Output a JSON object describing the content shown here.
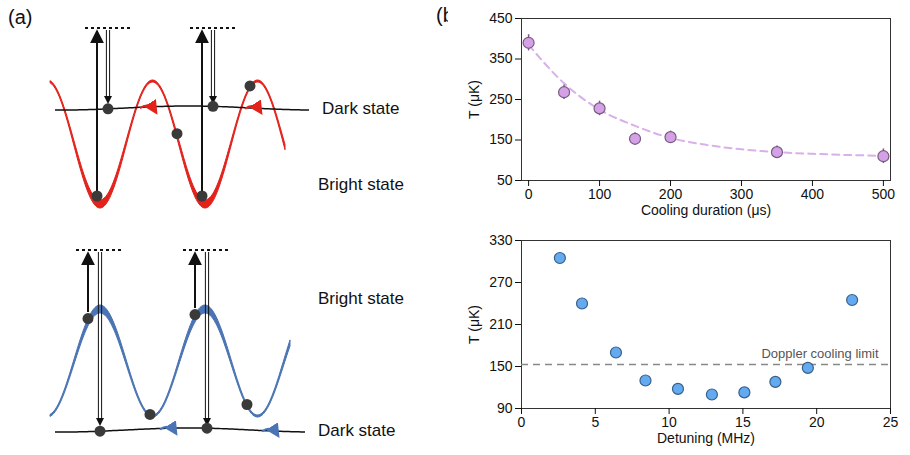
{
  "panel_labels": [
    "(a)",
    "(b)"
  ],
  "diagram": {
    "top": {
      "upper_state": "Dark state",
      "lower_state": "Bright state",
      "color": "#e3221c"
    },
    "bottom": {
      "upper_state": "Bright state",
      "lower_state": "Dark state",
      "color": "#4a74b4"
    }
  },
  "chart_data": [
    {
      "type": "scatter",
      "x_label": "Cooling duration (μs)",
      "y_label": "T (μK)",
      "x": [
        0,
        50,
        100,
        150,
        200,
        350,
        500
      ],
      "values": [
        390,
        268,
        228,
        153,
        157,
        120,
        110
      ],
      "errors": [
        20,
        18,
        18,
        15,
        15,
        15,
        18
      ],
      "color": "#d4a0e6",
      "marker": "circle",
      "xlim": [
        -10,
        510
      ],
      "xticks": [
        0,
        100,
        200,
        300,
        400,
        500
      ],
      "ylim": [
        50,
        450
      ],
      "yticks": [
        50,
        150,
        250,
        350,
        450
      ],
      "fit": {
        "x": [
          0,
          50,
          100,
          150,
          200,
          250,
          300,
          350,
          400,
          450,
          500
        ],
        "values": [
          385,
          290,
          225,
          185,
          155,
          138,
          127,
          120,
          116,
          113,
          111
        ],
        "line_style": "dashed",
        "color": "#d9b0e8"
      }
    },
    {
      "type": "scatter",
      "x_label": "Detuning (MHz)",
      "y_label": "T (μK)",
      "x": [
        2.6,
        4.1,
        6.4,
        8.4,
        10.6,
        12.9,
        15.1,
        17.2,
        19.4,
        22.4
      ],
      "values": [
        305,
        240,
        170,
        130,
        118,
        110,
        113,
        128,
        148,
        245
      ],
      "errors": [
        7,
        6,
        5,
        5,
        5,
        5,
        5,
        5,
        5,
        6
      ],
      "color": "#64aaf0",
      "marker": "circle",
      "xlim": [
        0,
        25
      ],
      "xticks": [
        0,
        5,
        10,
        15,
        20,
        25
      ],
      "ylim": [
        90,
        330
      ],
      "yticks": [
        90,
        150,
        210,
        270,
        330
      ],
      "reference_line": {
        "value": 153,
        "label": "Doppler cooling limit",
        "line_style": "dashed",
        "color": "#888888"
      }
    }
  ]
}
